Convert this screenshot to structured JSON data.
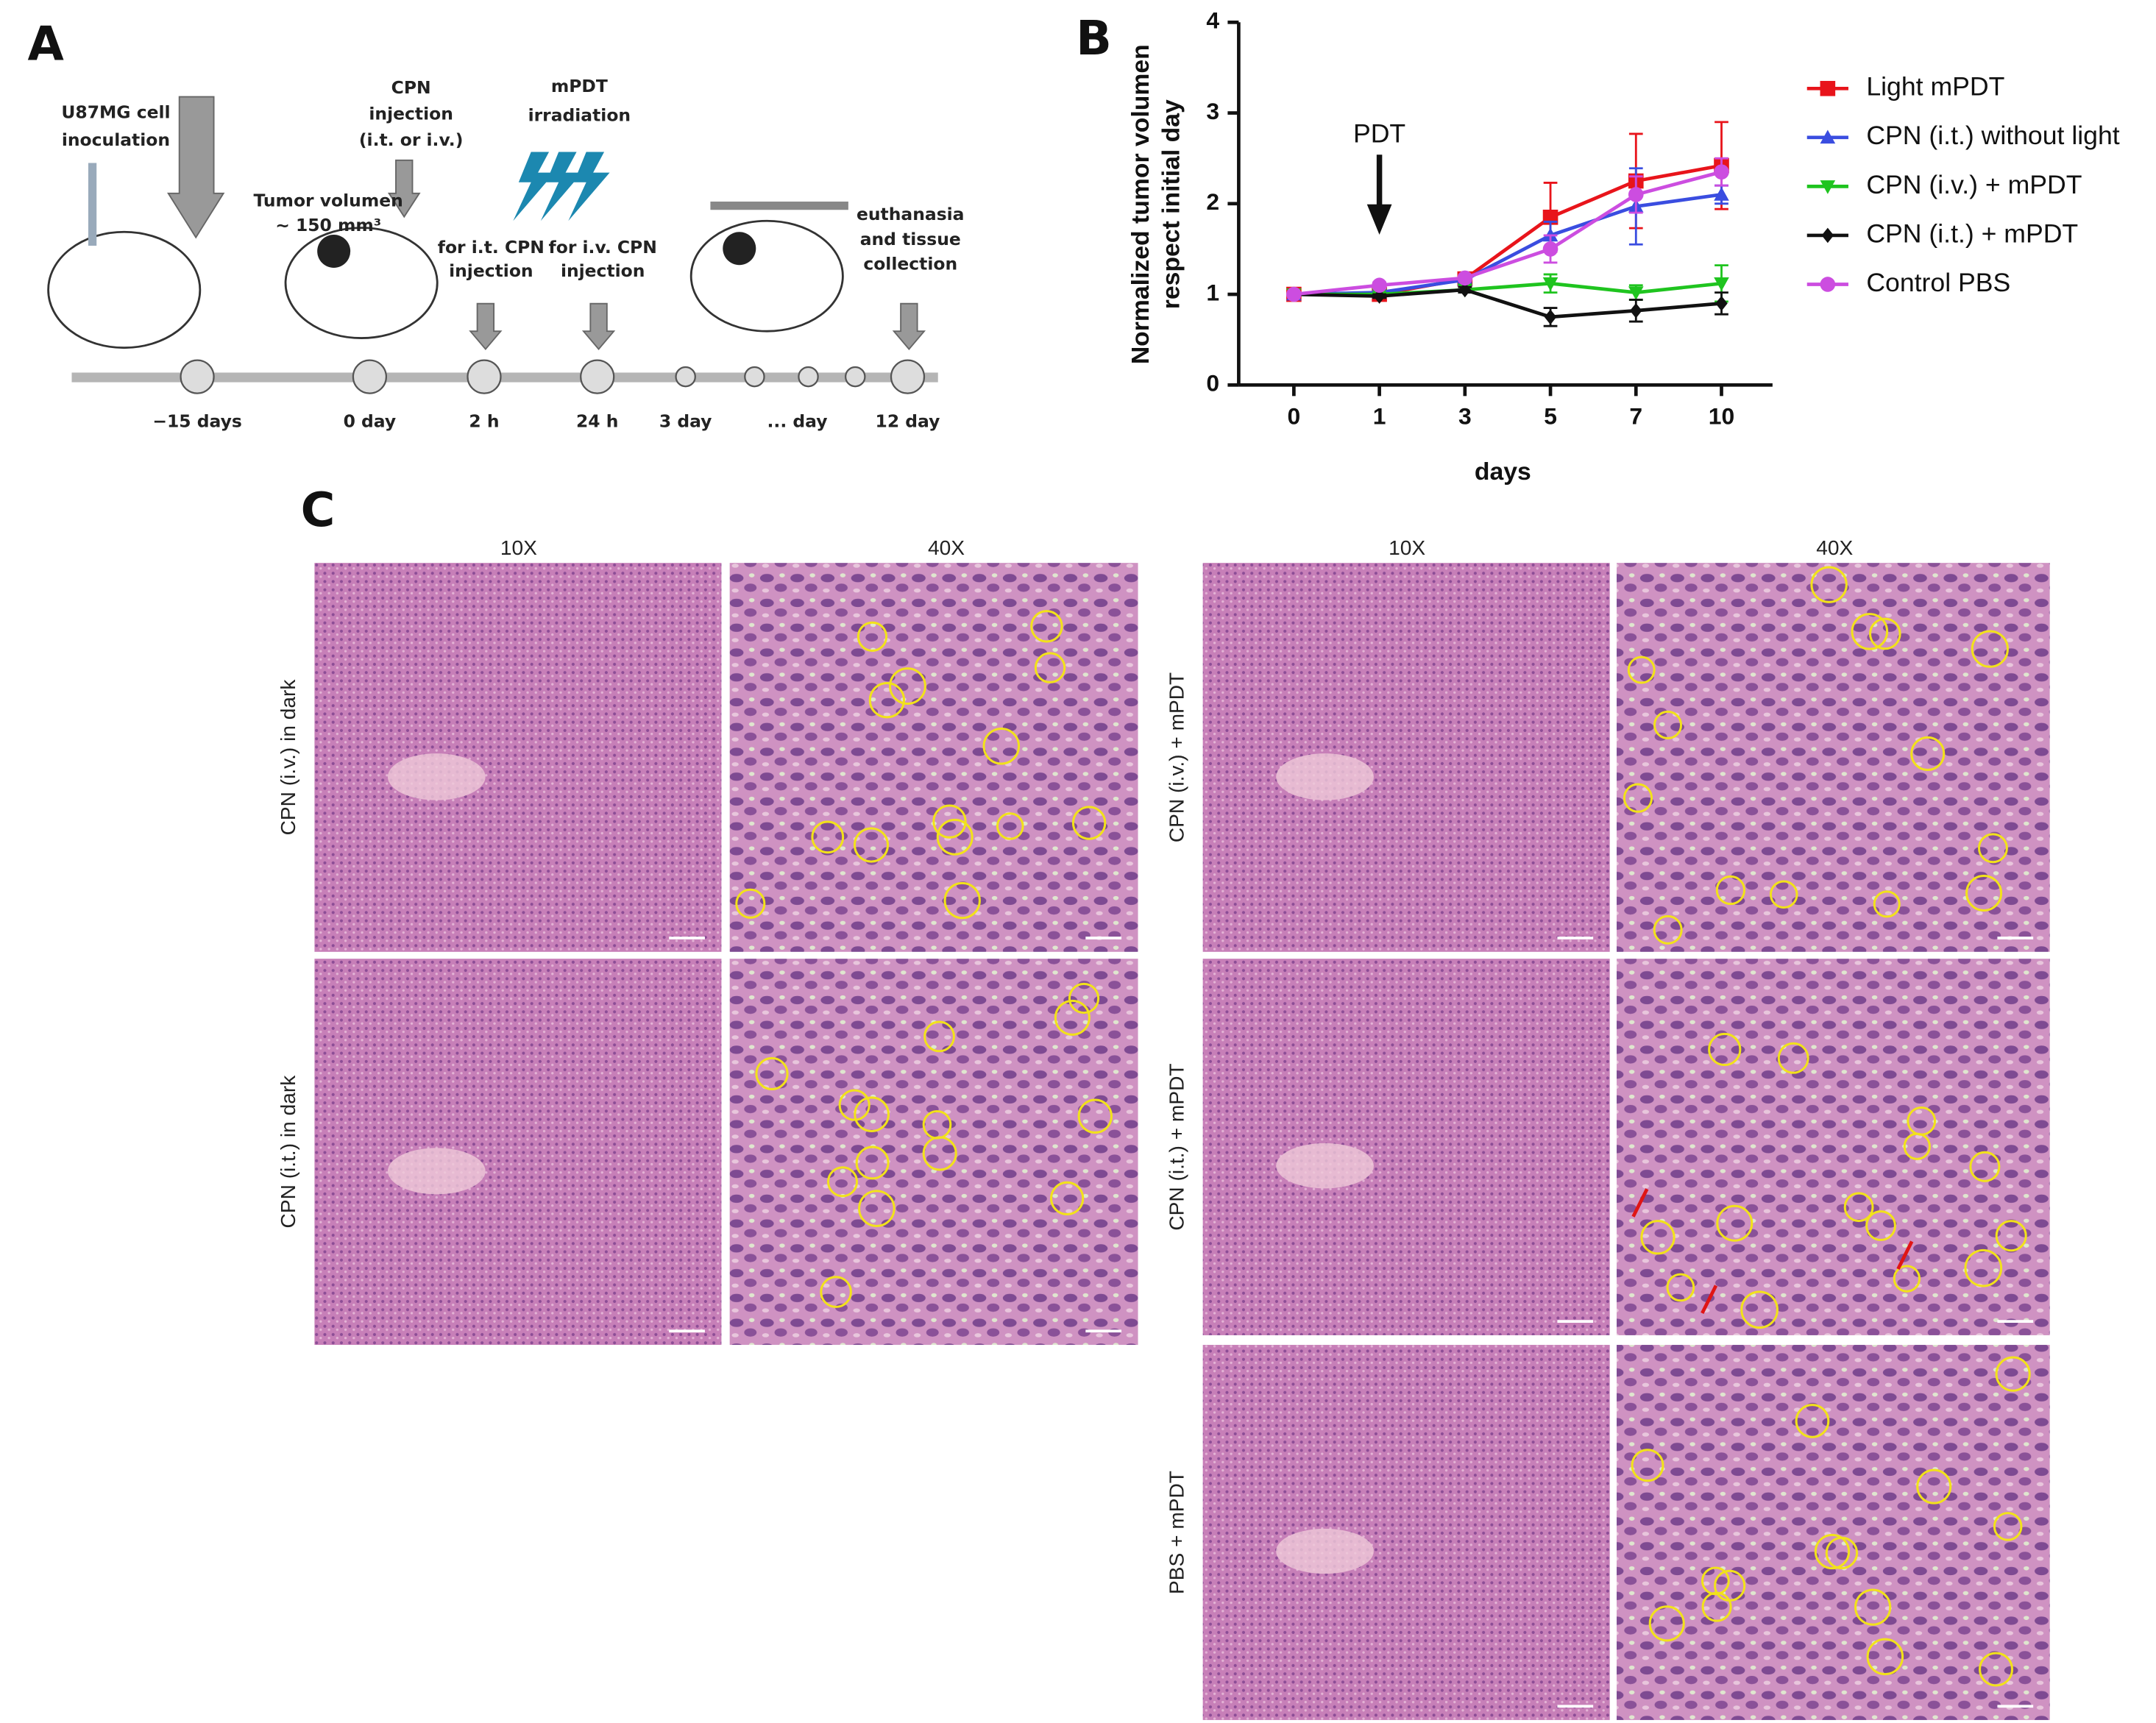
{
  "panel_labels": {
    "a": "A",
    "b": "B",
    "c": "C"
  },
  "panel_a": {
    "inoculation": [
      "U87MG cell",
      "inoculation"
    ],
    "injection": [
      "CPN",
      "injection",
      "(i.t. or i.v.)"
    ],
    "irradiation": [
      "mPDT",
      "irradiation"
    ],
    "tumor_volume": [
      "Tumor volumen",
      "~ 150 mm³"
    ],
    "it_injection": [
      "for i.t. CPN",
      "injection"
    ],
    "iv_injection": [
      "for i.v. CPN",
      "injection"
    ],
    "euthanasia": [
      "euthanasia",
      "and tissue",
      "collection"
    ],
    "timeline": [
      "−15 days",
      "0 day",
      "2 h",
      "24 h",
      "3 day",
      "... day",
      "12 day"
    ]
  },
  "chart_data": {
    "type": "line",
    "categories": [
      "0",
      "1",
      "3",
      "5",
      "7",
      "10"
    ],
    "x_label": "days",
    "y_label": [
      "Normalized tumor volumen",
      "respect initial day"
    ],
    "ylim": [
      0,
      4
    ],
    "yticks": [
      0,
      1,
      2,
      3,
      4
    ],
    "annotation": "PDT",
    "annotation_category": "1",
    "series": [
      {
        "name": "Light mPDT",
        "color": "#e8141b",
        "marker": "square",
        "values": [
          1,
          1.0,
          1.17,
          1.85,
          2.25,
          2.42
        ],
        "errors": [
          0,
          0.02,
          0.03,
          0.38,
          0.52,
          0.48
        ]
      },
      {
        "name": "CPN (i.t.) without light",
        "color": "#3a4de0",
        "marker": "triangle-up",
        "values": [
          1,
          1.02,
          1.16,
          1.65,
          1.97,
          2.1
        ],
        "errors": [
          0,
          0.02,
          0.03,
          0.15,
          0.42,
          0.1
        ]
      },
      {
        "name": "CPN (i.v.) + mPDT",
        "color": "#1fc41f",
        "marker": "triangle-down",
        "values": [
          1,
          1.0,
          1.05,
          1.12,
          1.02,
          1.12
        ],
        "errors": [
          0,
          0.02,
          0.03,
          0.1,
          0.08,
          0.2
        ]
      },
      {
        "name": "CPN (i.t.) + mPDT",
        "color": "#111111",
        "marker": "diamond",
        "values": [
          1,
          0.98,
          1.05,
          0.75,
          0.82,
          0.9
        ],
        "errors": [
          0,
          0.02,
          0.03,
          0.1,
          0.12,
          0.12
        ]
      },
      {
        "name": "Control PBS",
        "color": "#cc4de0",
        "marker": "circle",
        "values": [
          1,
          1.1,
          1.18,
          1.5,
          2.1,
          2.35
        ],
        "errors": [
          0,
          0.03,
          0.03,
          0.15,
          0.2,
          0.15
        ]
      }
    ]
  },
  "panel_c": {
    "magnifications": [
      "10X",
      "40X",
      "10X",
      "40X"
    ],
    "left_rows": [
      "CPN (i.v.) in dark",
      "CPN (i.t.) in dark"
    ],
    "right_rows": [
      "CPN (i.v.) + mPDT",
      "CPN (i.t.) + mPDT",
      "PBS + mPDT"
    ]
  }
}
